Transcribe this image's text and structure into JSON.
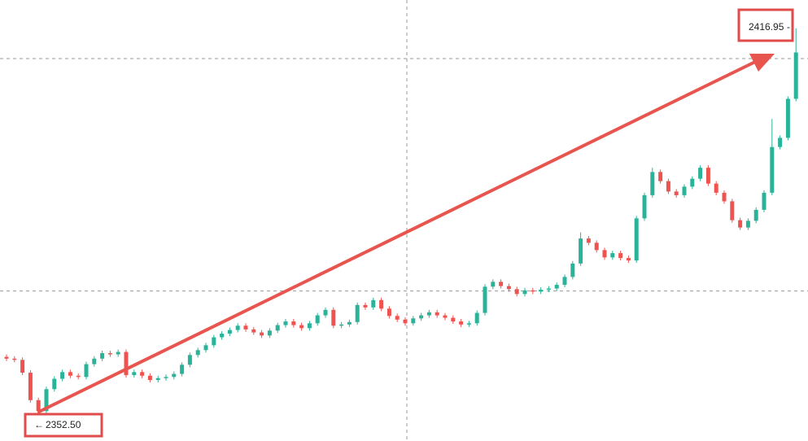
{
  "chart_data": {
    "type": "candlestick",
    "ylim": [
      2349.3,
      2421.6
    ],
    "up_color": "#2bb39a",
    "down_color": "#ef5350",
    "price_lines": [
      2412.0,
      2373.9
    ],
    "annotations": [
      {
        "label": "2416.95"
      },
      {
        "label": "2352.50"
      }
    ],
    "open": [
      2363.1,
      2362.8,
      2362.6,
      2360.5,
      2356.0,
      2354.2,
      2357.8,
      2359.5,
      2360.6,
      2360.0,
      2359.8,
      2361.9,
      2362.8,
      2363.7,
      2363.5,
      2363.9,
      2360.1,
      2360.6,
      2360.0,
      2359.3,
      2359.6,
      2359.8,
      2360.3,
      2361.8,
      2363.4,
      2364.2,
      2365.0,
      2366.3,
      2366.9,
      2367.5,
      2368.2,
      2367.6,
      2367.1,
      2366.6,
      2367.4,
      2368.3,
      2368.9,
      2368.3,
      2367.8,
      2368.6,
      2369.9,
      2370.8,
      2368.2,
      2368.4,
      2368.8,
      2371.6,
      2371.2,
      2372.4,
      2371.0,
      2369.8,
      2369.2,
      2368.6,
      2369.4,
      2369.9,
      2370.4,
      2369.9,
      2369.5,
      2368.9,
      2368.4,
      2368.6,
      2370.3,
      2374.6,
      2375.4,
      2374.7,
      2374.2,
      2373.4,
      2374.0,
      2373.8,
      2374.1,
      2374.3,
      2374.9,
      2376.2,
      2378.4,
      2382.5,
      2381.8,
      2380.6,
      2379.4,
      2380.1,
      2379.3,
      2378.9,
      2385.8,
      2389.6,
      2393.4,
      2391.9,
      2390.2,
      2389.6,
      2391.0,
      2392.3,
      2394.1,
      2391.5,
      2390.0,
      2388.6,
      2385.5,
      2384.3,
      2385.4,
      2387.2,
      2390.0,
      2397.5,
      2399.0,
      2405.4
    ],
    "high": [
      2363.5,
      2363.2,
      2363.0,
      2360.9,
      2356.4,
      2358.2,
      2359.9,
      2361.0,
      2361.0,
      2360.4,
      2362.3,
      2363.2,
      2364.1,
      2364.1,
      2364.3,
      2364.3,
      2361.0,
      2361.0,
      2360.4,
      2360.0,
      2360.2,
      2360.7,
      2362.2,
      2363.8,
      2364.6,
      2365.4,
      2366.7,
      2367.3,
      2367.9,
      2368.6,
      2368.6,
      2368.0,
      2367.5,
      2367.8,
      2368.7,
      2369.3,
      2369.3,
      2368.7,
      2369.0,
      2370.3,
      2371.2,
      2371.2,
      2368.8,
      2369.2,
      2372.0,
      2372.0,
      2372.8,
      2372.8,
      2371.4,
      2370.2,
      2369.6,
      2369.8,
      2370.3,
      2370.8,
      2370.8,
      2370.3,
      2369.9,
      2369.3,
      2369.0,
      2370.7,
      2375.0,
      2375.8,
      2375.8,
      2375.1,
      2374.6,
      2374.4,
      2374.4,
      2374.5,
      2374.7,
      2375.3,
      2376.6,
      2378.8,
      2383.5,
      2382.9,
      2382.2,
      2381.0,
      2380.5,
      2380.5,
      2379.7,
      2386.2,
      2390.0,
      2394.1,
      2393.8,
      2392.3,
      2390.6,
      2391.4,
      2392.7,
      2394.5,
      2394.5,
      2391.9,
      2390.4,
      2389.0,
      2385.9,
      2385.8,
      2387.6,
      2390.4,
      2402.1,
      2399.4,
      2405.8,
      2416.95
    ],
    "low": [
      2362.4,
      2362.2,
      2360.1,
      2355.6,
      2352.5,
      2353.8,
      2357.4,
      2359.1,
      2359.6,
      2359.4,
      2359.4,
      2361.5,
      2362.4,
      2363.1,
      2363.1,
      2359.7,
      2359.7,
      2359.6,
      2358.9,
      2358.9,
      2359.2,
      2359.4,
      2359.9,
      2361.4,
      2363.0,
      2363.8,
      2364.6,
      2365.9,
      2366.5,
      2367.1,
      2367.2,
      2366.7,
      2366.2,
      2366.2,
      2367.0,
      2367.9,
      2367.9,
      2367.4,
      2367.4,
      2368.2,
      2369.5,
      2367.8,
      2367.8,
      2368.0,
      2368.4,
      2370.8,
      2370.8,
      2370.6,
      2369.4,
      2368.8,
      2368.2,
      2368.2,
      2369.0,
      2369.5,
      2369.5,
      2369.1,
      2368.5,
      2368.0,
      2368.0,
      2368.2,
      2369.9,
      2374.2,
      2374.3,
      2373.8,
      2373.0,
      2373.0,
      2373.4,
      2373.4,
      2373.7,
      2373.9,
      2374.5,
      2375.8,
      2378.0,
      2381.4,
      2380.2,
      2379.0,
      2379.0,
      2378.9,
      2378.5,
      2378.5,
      2385.4,
      2389.2,
      2391.5,
      2389.8,
      2389.2,
      2389.2,
      2390.6,
      2391.9,
      2391.1,
      2389.6,
      2388.2,
      2385.1,
      2383.9,
      2383.9,
      2385.0,
      2386.8,
      2389.6,
      2397.1,
      2398.6,
      2405.0
    ],
    "close": [
      2362.8,
      2362.6,
      2360.5,
      2356.0,
      2354.2,
      2357.8,
      2359.5,
      2360.6,
      2360.0,
      2359.8,
      2361.9,
      2362.8,
      2363.7,
      2363.5,
      2363.9,
      2360.1,
      2360.6,
      2360.0,
      2359.3,
      2359.6,
      2359.8,
      2360.3,
      2361.8,
      2363.4,
      2364.2,
      2365.0,
      2366.3,
      2366.9,
      2367.5,
      2368.2,
      2367.6,
      2367.1,
      2366.6,
      2367.4,
      2368.3,
      2368.9,
      2368.3,
      2367.8,
      2368.6,
      2369.9,
      2370.8,
      2368.2,
      2368.4,
      2368.8,
      2371.6,
      2371.2,
      2372.4,
      2371.0,
      2369.8,
      2369.2,
      2368.6,
      2369.4,
      2369.9,
      2370.4,
      2369.9,
      2369.5,
      2368.9,
      2368.4,
      2368.6,
      2370.3,
      2374.6,
      2375.4,
      2374.7,
      2374.2,
      2373.4,
      2374.0,
      2373.8,
      2374.1,
      2374.3,
      2374.9,
      2376.2,
      2378.4,
      2382.5,
      2381.8,
      2380.6,
      2379.4,
      2380.1,
      2379.3,
      2378.9,
      2385.8,
      2389.6,
      2393.4,
      2391.9,
      2390.2,
      2389.6,
      2391.0,
      2392.3,
      2394.1,
      2391.5,
      2390.0,
      2388.6,
      2385.5,
      2384.3,
      2385.4,
      2387.2,
      2390.0,
      2397.5,
      2399.0,
      2405.4,
      2413.0
    ]
  }
}
